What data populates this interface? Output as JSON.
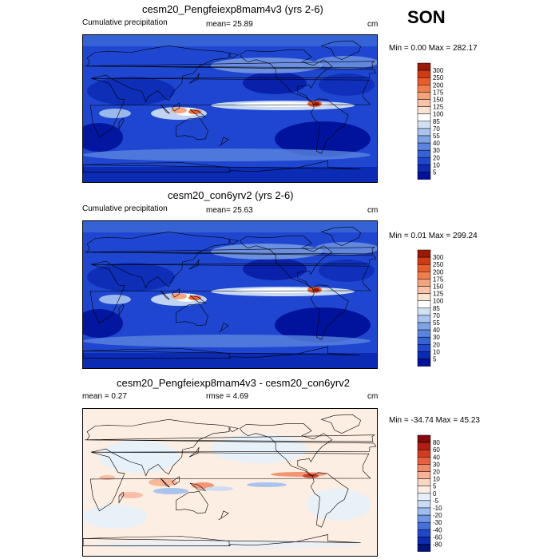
{
  "season": "SON",
  "chart_data": [
    {
      "type": "heatmap",
      "title": "cesm20_Pengfeiexp8mam4v3 (yrs 2-6)",
      "left_label": "Cumulative precipitation",
      "stat_text": "mean=  25.89",
      "units": "cm",
      "range_text": "Min =   0.00 Max = 282.17",
      "levels": [
        "300",
        "250",
        "200",
        "175",
        "150",
        "125",
        "100",
        "85",
        "70",
        "55",
        "40",
        "30",
        "20",
        "10",
        "5"
      ],
      "colors": [
        "#9b1a06",
        "#d23a11",
        "#ea5d2a",
        "#f27f4b",
        "#f6a27a",
        "#f8c3a6",
        "#fbe3d3",
        "#ffffff",
        "#d2e2f6",
        "#a9c4ee",
        "#7ea2e6",
        "#5a84df",
        "#3563d6",
        "#1f46d0",
        "#0c2bb5",
        "#00119a"
      ]
    },
    {
      "type": "heatmap",
      "title": "cesm20_con6yrv2 (yrs 2-6)",
      "left_label": "Cumulative precipitation",
      "stat_text": "mean=  25.63",
      "units": "cm",
      "range_text": "Min =   0.01 Max = 299.24",
      "levels": [
        "300",
        "250",
        "200",
        "175",
        "150",
        "125",
        "100",
        "85",
        "70",
        "55",
        "40",
        "30",
        "20",
        "10",
        "5"
      ],
      "colors": [
        "#9b1a06",
        "#d23a11",
        "#ea5d2a",
        "#f27f4b",
        "#f6a27a",
        "#f8c3a6",
        "#fbe3d3",
        "#ffffff",
        "#d2e2f6",
        "#a9c4ee",
        "#7ea2e6",
        "#5a84df",
        "#3563d6",
        "#1f46d0",
        "#0c2bb5",
        "#00119a"
      ]
    },
    {
      "type": "heatmap",
      "title": "cesm20_Pengfeiexp8mam4v3 - cesm20_con6yrv2",
      "left_label": "mean =   0.27",
      "stat_text": "rmse =   4.69",
      "units": "cm",
      "range_text": "Min = -34.74 Max =  45.23",
      "levels": [
        "80",
        "60",
        "40",
        "30",
        "20",
        "10",
        "5",
        "0",
        "-5",
        "-10",
        "-20",
        "-30",
        "-40",
        "-60",
        "-80"
      ],
      "colors": [
        "#870a0a",
        "#b21e12",
        "#d23a22",
        "#e9603e",
        "#f38966",
        "#f8b296",
        "#fbd6c2",
        "#fdeee3",
        "#e6f0fa",
        "#c8dcf4",
        "#9dbeee",
        "#6f96e4",
        "#4470da",
        "#2048cc",
        "#0c2bb0",
        "#00137e"
      ]
    }
  ]
}
